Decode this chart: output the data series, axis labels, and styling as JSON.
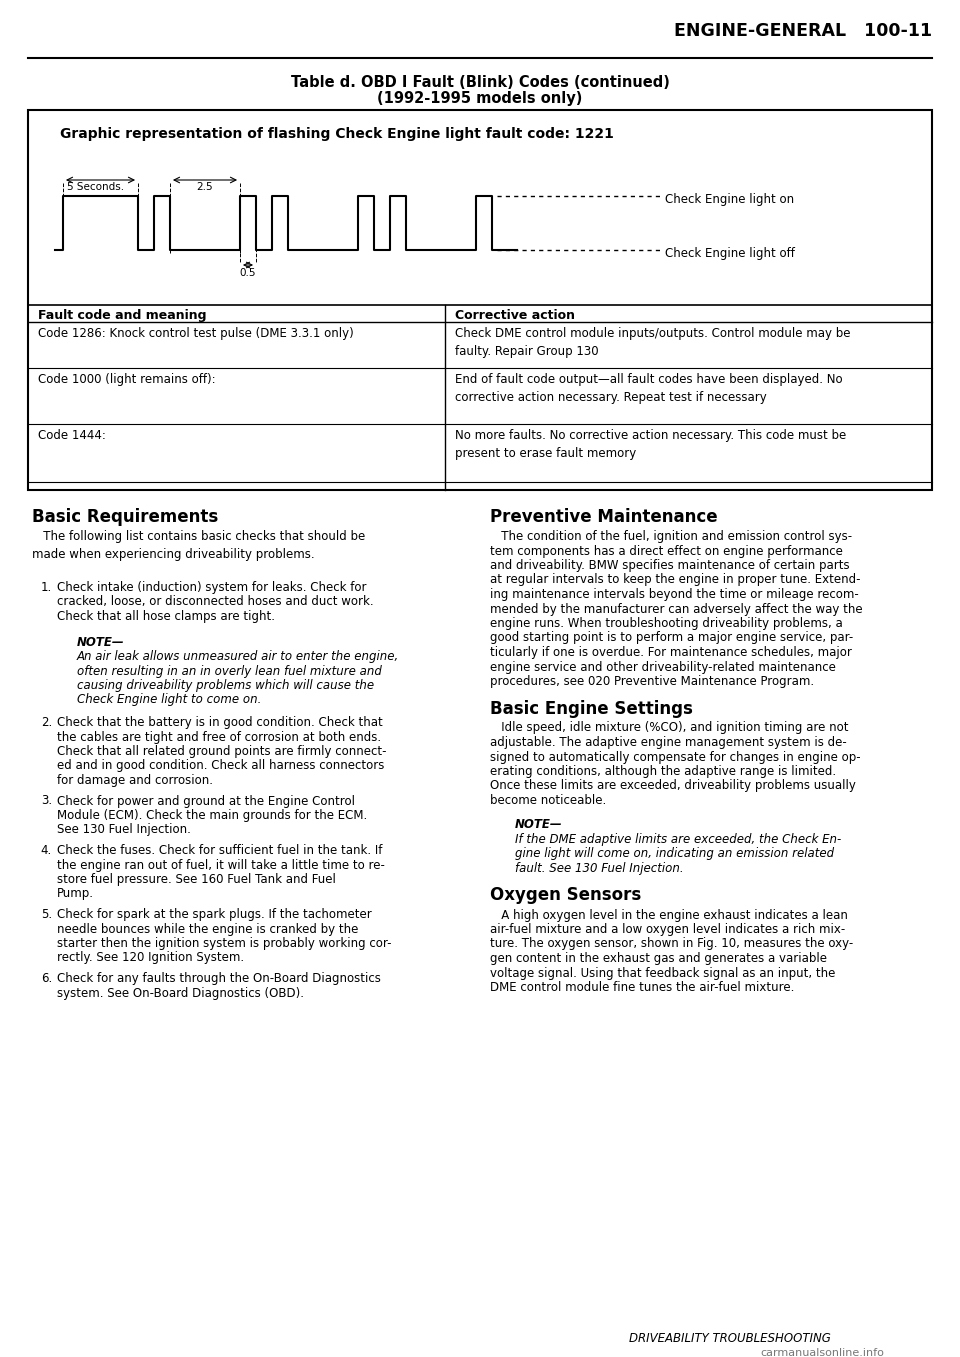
{
  "page_header": "ENGINE-GENERAL   100-11",
  "table_title_line1": "Table d. OBD I Fault (Blink) Codes (continued)",
  "table_title_line2": "(1992-1995 models only)",
  "graphic_title": "Graphic representation of flashing Check Engine light fault code: 1221",
  "check_engine_on_label": "Check Engine light on",
  "check_engine_off_label": "Check Engine light off",
  "fault_col_header": "Fault code and meaning",
  "action_col_header": "Corrective action",
  "table_rows": [
    {
      "fault": "Code 1286: Knock control test pulse (DME 3.3.1 only)",
      "action": "Check DME control module inputs/outputs. Control module may be\nfaulty. Repair Group 130"
    },
    {
      "fault": "Code 1000 (light remains off):",
      "action": "End of fault code output—all fault codes have been displayed. No\ncorrective action necessary. Repeat test if necessary"
    },
    {
      "fault": "Code 1444:",
      "action": "No more faults. No corrective action necessary. This code must be\npresent to erase fault memory"
    }
  ],
  "left_title": "Basic Requirements",
  "right_title": "Preventive Maintenance",
  "left_para": "   The following list contains basic checks that should be\nmade when experiencing driveability problems.",
  "left_items": [
    {
      "num": "1.",
      "text": "Check intake (induction) system for leaks. Check for\ncracked, loose, or disconnected hoses and duct work.\nCheck that all hose clamps are tight."
    },
    {
      "num": "NOTE",
      "text": "NOTE—\nAn air leak allows unmeasured air to enter the engine,\noften resulting in an in overly lean fuel mixture and\ncausing driveability problems which will cause the\nCheck Engine light to come on."
    },
    {
      "num": "2.",
      "text": "Check that the battery is in good condition. Check that\nthe cables are tight and free of corrosion at both ends.\nCheck that all related ground points are firmly connect-\ned and in good condition. Check all harness connectors\nfor damage and corrosion."
    },
    {
      "num": "3.",
      "text": "Check for power and ground at the Engine Control\nModule (ECM). Check the main grounds for the ECM.\nSee 130 Fuel Injection."
    },
    {
      "num": "4.",
      "text": "Check the fuses. Check for sufficient fuel in the tank. If\nthe engine ran out of fuel, it will take a little time to re-\nstore fuel pressure. See 160 Fuel Tank and Fuel\nPump."
    },
    {
      "num": "5.",
      "text": "Check for spark at the spark plugs. If the tachometer\nneedle bounces while the engine is cranked by the\nstarter then the ignition system is probably working cor-\nrectly. See 120 Ignition System."
    },
    {
      "num": "6.",
      "text": "Check for any faults through the On-Board Diagnostics\nsystem. See On-Board Diagnostics (OBD)."
    }
  ],
  "right_para1_lines": [
    "   The condition of the fuel, ignition and emission control sys-",
    "tem components has a direct effect on engine performance",
    "and driveability. BMW specifies maintenance of certain parts",
    "at regular intervals to keep the engine in proper tune. Extend-",
    "ing maintenance intervals beyond the time or mileage recom-",
    "mended by the manufacturer can adversely affect the way the",
    "engine runs. When troubleshooting driveability problems, a",
    "good starting point is to perform a major engine service, par-",
    "ticularly if one is overdue. For maintenance schedules, major",
    "engine service and other driveability-related maintenance",
    "procedures, see 020 Preventive Maintenance Program."
  ],
  "right_title2": "Basic Engine Settings",
  "right_para2_lines": [
    "   Idle speed, idle mixture (%CO), and ignition timing are not",
    "adjustable. The adaptive engine management system is de-",
    "signed to automatically compensate for changes in engine op-",
    "erating conditions, although the adaptive range is limited.",
    "Once these limits are exceeded, driveability problems usually",
    "become noticeable."
  ],
  "right_note_lines": [
    "NOTE—",
    "If the DME adaptive limits are exceeded, the Check En-",
    "gine light will come on, indicating an emission related",
    "fault. See 130 Fuel Injection."
  ],
  "right_title3": "Oxygen Sensors",
  "right_para3_lines": [
    "   A high oxygen level in the engine exhaust indicates a lean",
    "air-fuel mixture and a low oxygen level indicates a rich mix-",
    "ture. The oxygen sensor, shown in Fig. 10, measures the oxy-",
    "gen content in the exhaust gas and generates a variable",
    "voltage signal. Using that feedback signal as an input, the",
    "DME control module fine tunes the air-fuel mixture."
  ],
  "footer": "DRIVEABILITY TROUBLESHOOTING",
  "watermark": "carmanualsonline.info",
  "bg_color": "#ffffff"
}
